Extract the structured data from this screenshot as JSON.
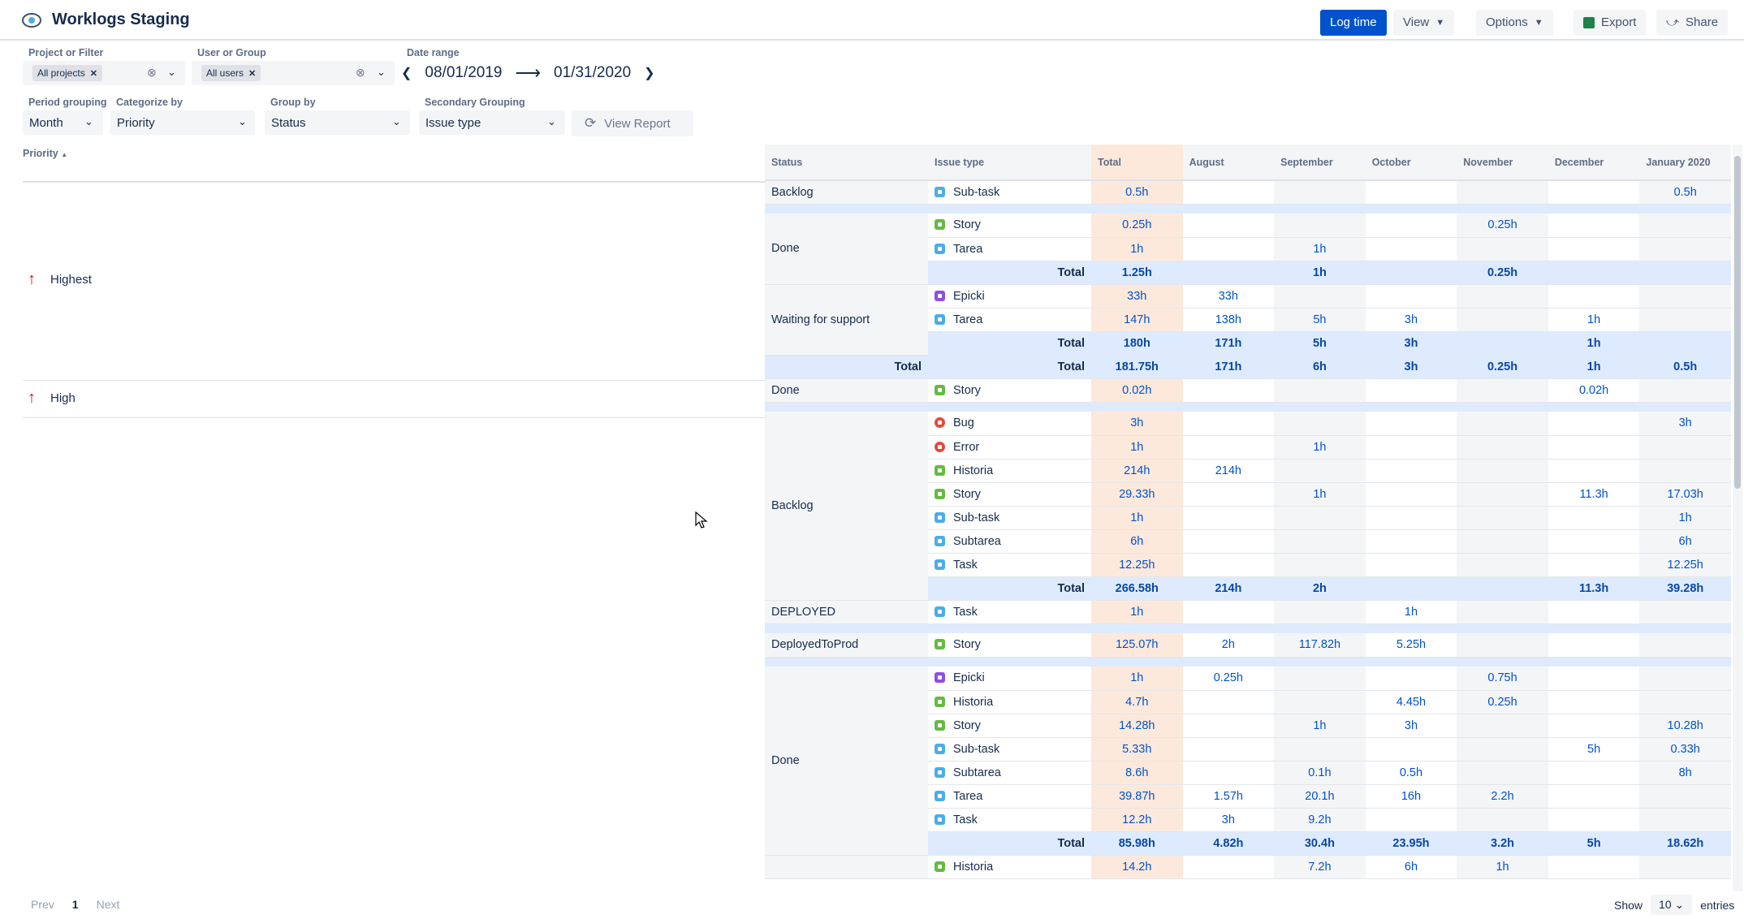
{
  "app": {
    "title": "Worklogs Staging"
  },
  "toolbar": {
    "log_time": "Log time",
    "view": "View",
    "options": "Options",
    "export": "Export",
    "share": "Share"
  },
  "filters": {
    "project_label": "Project or Filter",
    "project_chip": "All projects",
    "user_label": "User or Group",
    "user_chip": "All users",
    "date_label": "Date range",
    "date_from": "08/01/2019",
    "date_to": "01/31/2020",
    "period_label": "Period grouping",
    "period_value": "Month",
    "categorize_label": "Categorize by",
    "categorize_value": "Priority",
    "groupby_label": "Group by",
    "groupby_value": "Status",
    "secondary_label": "Secondary Grouping",
    "secondary_value": "Issue type",
    "view_report": "View Report"
  },
  "left": {
    "header": "Priority",
    "items": [
      {
        "label": "Highest"
      },
      {
        "label": "High"
      }
    ]
  },
  "table": {
    "headers": {
      "status": "Status",
      "type": "Issue type",
      "total": "Total",
      "months": [
        "August",
        "September",
        "October",
        "November",
        "December",
        "January 2020"
      ]
    },
    "total_label": "Total",
    "highest": {
      "backlog": {
        "status": "Backlog",
        "rows": [
          {
            "type": "Sub-task",
            "icon": "subtask",
            "vals": [
              "0.5h",
              "",
              "",
              "",
              "",
              "",
              "0.5h"
            ]
          }
        ]
      },
      "done": {
        "status": "Done",
        "rows": [
          {
            "type": "Story",
            "icon": "story",
            "vals": [
              "0.25h",
              "",
              "",
              "",
              "0.25h",
              "",
              ""
            ]
          },
          {
            "type": "Tarea",
            "icon": "task",
            "vals": [
              "1h",
              "",
              "1h",
              "",
              "",
              "",
              ""
            ]
          }
        ],
        "total": [
          "1.25h",
          "",
          "1h",
          "",
          "0.25h",
          "",
          ""
        ]
      },
      "waiting": {
        "status": "Waiting for support",
        "rows": [
          {
            "type": "Epicki",
            "icon": "epic",
            "vals": [
              "33h",
              "33h",
              "",
              "",
              "",
              "",
              ""
            ]
          },
          {
            "type": "Tarea",
            "icon": "task",
            "vals": [
              "147h",
              "138h",
              "5h",
              "3h",
              "",
              "1h",
              ""
            ]
          }
        ],
        "total": [
          "180h",
          "171h",
          "5h",
          "3h",
          "",
          "1h",
          ""
        ]
      },
      "grand": [
        "181.75h",
        "171h",
        "6h",
        "3h",
        "0.25h",
        "1h",
        "0.5h"
      ]
    },
    "high": {
      "done1": {
        "status": "Done",
        "rows": [
          {
            "type": "Story",
            "icon": "story",
            "vals": [
              "0.02h",
              "",
              "",
              "",
              "",
              "0.02h",
              ""
            ]
          }
        ]
      },
      "backlog": {
        "status": "Backlog",
        "rows": [
          {
            "type": "Bug",
            "icon": "bug",
            "vals": [
              "3h",
              "",
              "",
              "",
              "",
              "",
              "3h"
            ]
          },
          {
            "type": "Error",
            "icon": "bug",
            "vals": [
              "1h",
              "",
              "1h",
              "",
              "",
              "",
              ""
            ]
          },
          {
            "type": "Historia",
            "icon": "story",
            "vals": [
              "214h",
              "214h",
              "",
              "",
              "",
              "",
              ""
            ]
          },
          {
            "type": "Story",
            "icon": "story",
            "vals": [
              "29.33h",
              "",
              "1h",
              "",
              "",
              "11.3h",
              "17.03h"
            ]
          },
          {
            "type": "Sub-task",
            "icon": "subtask",
            "vals": [
              "1h",
              "",
              "",
              "",
              "",
              "",
              "1h"
            ]
          },
          {
            "type": "Subtarea",
            "icon": "subtask",
            "vals": [
              "6h",
              "",
              "",
              "",
              "",
              "",
              "6h"
            ]
          },
          {
            "type": "Task",
            "icon": "task",
            "vals": [
              "12.25h",
              "",
              "",
              "",
              "",
              "",
              "12.25h"
            ]
          }
        ],
        "total": [
          "266.58h",
          "214h",
          "2h",
          "",
          "",
          "11.3h",
          "39.28h"
        ]
      },
      "deployed": {
        "status": "DEPLOYED",
        "rows": [
          {
            "type": "Task",
            "icon": "task",
            "vals": [
              "1h",
              "",
              "",
              "1h",
              "",
              "",
              ""
            ]
          }
        ]
      },
      "deployedprod": {
        "status": "DeployedToProd",
        "rows": [
          {
            "type": "Story",
            "icon": "story",
            "vals": [
              "125.07h",
              "2h",
              "117.82h",
              "5.25h",
              "",
              "",
              ""
            ]
          }
        ]
      },
      "done2": {
        "status": "Done",
        "rows": [
          {
            "type": "Epicki",
            "icon": "epic",
            "vals": [
              "1h",
              "0.25h",
              "",
              "",
              "0.75h",
              "",
              ""
            ]
          },
          {
            "type": "Historia",
            "icon": "story",
            "vals": [
              "4.7h",
              "",
              "",
              "4.45h",
              "0.25h",
              "",
              ""
            ]
          },
          {
            "type": "Story",
            "icon": "story",
            "vals": [
              "14.28h",
              "",
              "1h",
              "3h",
              "",
              "",
              "10.28h"
            ]
          },
          {
            "type": "Sub-task",
            "icon": "subtask",
            "vals": [
              "5.33h",
              "",
              "",
              "",
              "",
              "5h",
              "0.33h"
            ]
          },
          {
            "type": "Subtarea",
            "icon": "subtask",
            "vals": [
              "8.6h",
              "",
              "0.1h",
              "0.5h",
              "",
              "",
              "8h"
            ]
          },
          {
            "type": "Tarea",
            "icon": "task",
            "vals": [
              "39.87h",
              "1.57h",
              "20.1h",
              "16h",
              "2.2h",
              "",
              ""
            ]
          },
          {
            "type": "Task",
            "icon": "task",
            "vals": [
              "12.2h",
              "3h",
              "9.2h",
              "",
              "",
              "",
              ""
            ]
          }
        ],
        "total": [
          "85.98h",
          "4.82h",
          "30.4h",
          "23.95h",
          "3.2h",
          "5h",
          "18.62h"
        ]
      },
      "next": {
        "rows": [
          {
            "type": "Historia",
            "icon": "story",
            "vals": [
              "14.2h",
              "",
              "7.2h",
              "6h",
              "1h",
              "",
              ""
            ]
          }
        ]
      }
    }
  },
  "pager": {
    "prev": "Prev",
    "page": "1",
    "next": "Next",
    "show": "Show",
    "entries_value": "10",
    "entries": "entries"
  }
}
